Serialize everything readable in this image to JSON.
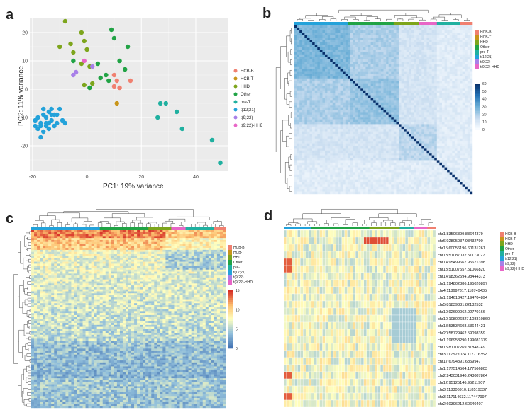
{
  "figure": {
    "panels": [
      "a",
      "b",
      "c",
      "d"
    ]
  },
  "groups": [
    {
      "name": "HCB-B",
      "color": "#f08070"
    },
    {
      "name": "HCB-T",
      "color": "#c8951a"
    },
    {
      "name": "HHD",
      "color": "#7da51c"
    },
    {
      "name": "Other",
      "color": "#21a345"
    },
    {
      "name": "pre-T",
      "color": "#20b0a0"
    },
    {
      "name": "t(12;21)",
      "color": "#23a2da"
    },
    {
      "name": "t(9;22)",
      "color": "#a880e8"
    },
    {
      "name": "t(9;22)-HHD",
      "color": "#e866c7"
    }
  ],
  "chart_data": [
    {
      "panel": "a",
      "type": "scatter",
      "xlabel": "PC1: 19% variance",
      "ylabel": "PC2: 11% variance",
      "xlim": [
        -21,
        52
      ],
      "ylim": [
        -29,
        25
      ],
      "xticks": [
        -20,
        0,
        20,
        40
      ],
      "yticks": [
        20,
        10,
        0,
        -10,
        -20
      ],
      "points": [
        {
          "x": 10,
          "y": 1,
          "g": 0
        },
        {
          "x": 11,
          "y": 3,
          "g": 0
        },
        {
          "x": 12,
          "y": 0.5,
          "g": 0
        },
        {
          "x": 16,
          "y": 3,
          "g": 0
        },
        {
          "x": 10,
          "y": 5,
          "g": 0
        },
        {
          "x": 11,
          "y": -5,
          "g": 1
        },
        {
          "x": -8,
          "y": 24,
          "g": 2
        },
        {
          "x": -2,
          "y": 20,
          "g": 2
        },
        {
          "x": -10,
          "y": 15,
          "g": 2
        },
        {
          "x": -5,
          "y": 13,
          "g": 2
        },
        {
          "x": -1,
          "y": 17,
          "g": 2
        },
        {
          "x": 0,
          "y": 14,
          "g": 2
        },
        {
          "x": -6,
          "y": 16,
          "g": 2
        },
        {
          "x": -2,
          "y": 9,
          "g": 2
        },
        {
          "x": 2,
          "y": 2,
          "g": 2
        },
        {
          "x": -1,
          "y": 1.5,
          "g": 2
        },
        {
          "x": 1,
          "y": 8,
          "g": 2
        },
        {
          "x": 9,
          "y": 21,
          "g": 3
        },
        {
          "x": 10,
          "y": 18,
          "g": 3
        },
        {
          "x": 15,
          "y": 15,
          "g": 3
        },
        {
          "x": 12,
          "y": 10,
          "g": 3
        },
        {
          "x": 7,
          "y": 5,
          "g": 3
        },
        {
          "x": 14,
          "y": 7,
          "g": 3
        },
        {
          "x": 8,
          "y": 3,
          "g": 3
        },
        {
          "x": 4,
          "y": 9,
          "g": 3
        },
        {
          "x": -5,
          "y": 10,
          "g": 3
        },
        {
          "x": 1,
          "y": 0.5,
          "g": 3
        },
        {
          "x": 5,
          "y": 4,
          "g": 3
        },
        {
          "x": 26,
          "y": -10,
          "g": 4
        },
        {
          "x": 27,
          "y": -5,
          "g": 4
        },
        {
          "x": 29,
          "y": -5,
          "g": 4
        },
        {
          "x": 33,
          "y": -8,
          "g": 4
        },
        {
          "x": 35,
          "y": -14,
          "g": 4
        },
        {
          "x": 46,
          "y": -18,
          "g": 4
        },
        {
          "x": 49,
          "y": -26,
          "g": 4
        },
        {
          "x": -16,
          "y": -7,
          "g": 5
        },
        {
          "x": -14,
          "y": -8,
          "g": 5
        },
        {
          "x": -18,
          "y": -10,
          "g": 5
        },
        {
          "x": -12,
          "y": -9,
          "g": 5
        },
        {
          "x": -15,
          "y": -12,
          "g": 5
        },
        {
          "x": -17,
          "y": -13,
          "g": 5
        },
        {
          "x": -13,
          "y": -11,
          "g": 5
        },
        {
          "x": -11,
          "y": -12,
          "g": 5
        },
        {
          "x": -16,
          "y": -15,
          "g": 5
        },
        {
          "x": -14,
          "y": -14,
          "g": 5
        },
        {
          "x": -19,
          "y": -11,
          "g": 5
        },
        {
          "x": -10,
          "y": -7,
          "g": 5
        },
        {
          "x": -13,
          "y": -7,
          "g": 5
        },
        {
          "x": -15,
          "y": -10,
          "g": 5
        },
        {
          "x": -17,
          "y": -17,
          "g": 5
        },
        {
          "x": -12,
          "y": -13,
          "g": 5
        },
        {
          "x": -9,
          "y": -11,
          "g": 5
        },
        {
          "x": -18,
          "y": -14,
          "g": 5
        },
        {
          "x": -14,
          "y": -12,
          "g": 5
        },
        {
          "x": -16,
          "y": -9,
          "g": 5
        },
        {
          "x": -11,
          "y": -9,
          "g": 5
        },
        {
          "x": -8,
          "y": -12,
          "g": 5
        },
        {
          "x": -15,
          "y": -13,
          "g": 5
        },
        {
          "x": -17,
          "y": -12,
          "g": 5
        },
        {
          "x": -13,
          "y": -9,
          "g": 5
        },
        {
          "x": -19,
          "y": -13,
          "g": 5
        },
        {
          "x": -4,
          "y": 6,
          "g": 6
        },
        {
          "x": -5,
          "y": 5,
          "g": 6
        },
        {
          "x": 2,
          "y": 8,
          "g": 6
        },
        {
          "x": -1,
          "y": 10,
          "g": 7
        }
      ]
    },
    {
      "panel": "b",
      "type": "heatmap",
      "description": "sample-sample distance heatmap",
      "legend_ticks": [
        60,
        50,
        40,
        30,
        20,
        10,
        0
      ],
      "size": 70
    },
    {
      "panel": "c",
      "type": "heatmap",
      "description": "gene expression heatmap",
      "legend_ticks": [
        15,
        10,
        5,
        0
      ]
    },
    {
      "panel": "d",
      "type": "heatmap",
      "description": "region heatmap",
      "rows": [
        "chr1.83506399.83644379",
        "chr6.92805037.93432790",
        "chr15.60056196.60131261",
        "chr13.51087032.51173027",
        "chr14.95499667.95671398",
        "chr13.51007557.51066820",
        "chr14.98362594.98444373",
        "chr1.194802386.195020897",
        "chr4.118697317.118749435",
        "chr1.194613427.194704894",
        "chr5.81839331.82132532",
        "chr10.92699062.92770166",
        "chr10.108026827.108310860",
        "chr18.53534603.53644421",
        "chr20.58729462.59098359",
        "chr1.196953290.199081379",
        "chr15.81707269.81848749",
        "chr3.117527024.117716352",
        "chr17.6794391.6859947",
        "chr1.177514504.177566803",
        "chr2.243031940.243087864",
        "chr12.95125146.95211907",
        "chr3.118306910.118519337",
        "chr3.117114632.117447997",
        "chr2.60396212.60640407"
      ]
    }
  ]
}
